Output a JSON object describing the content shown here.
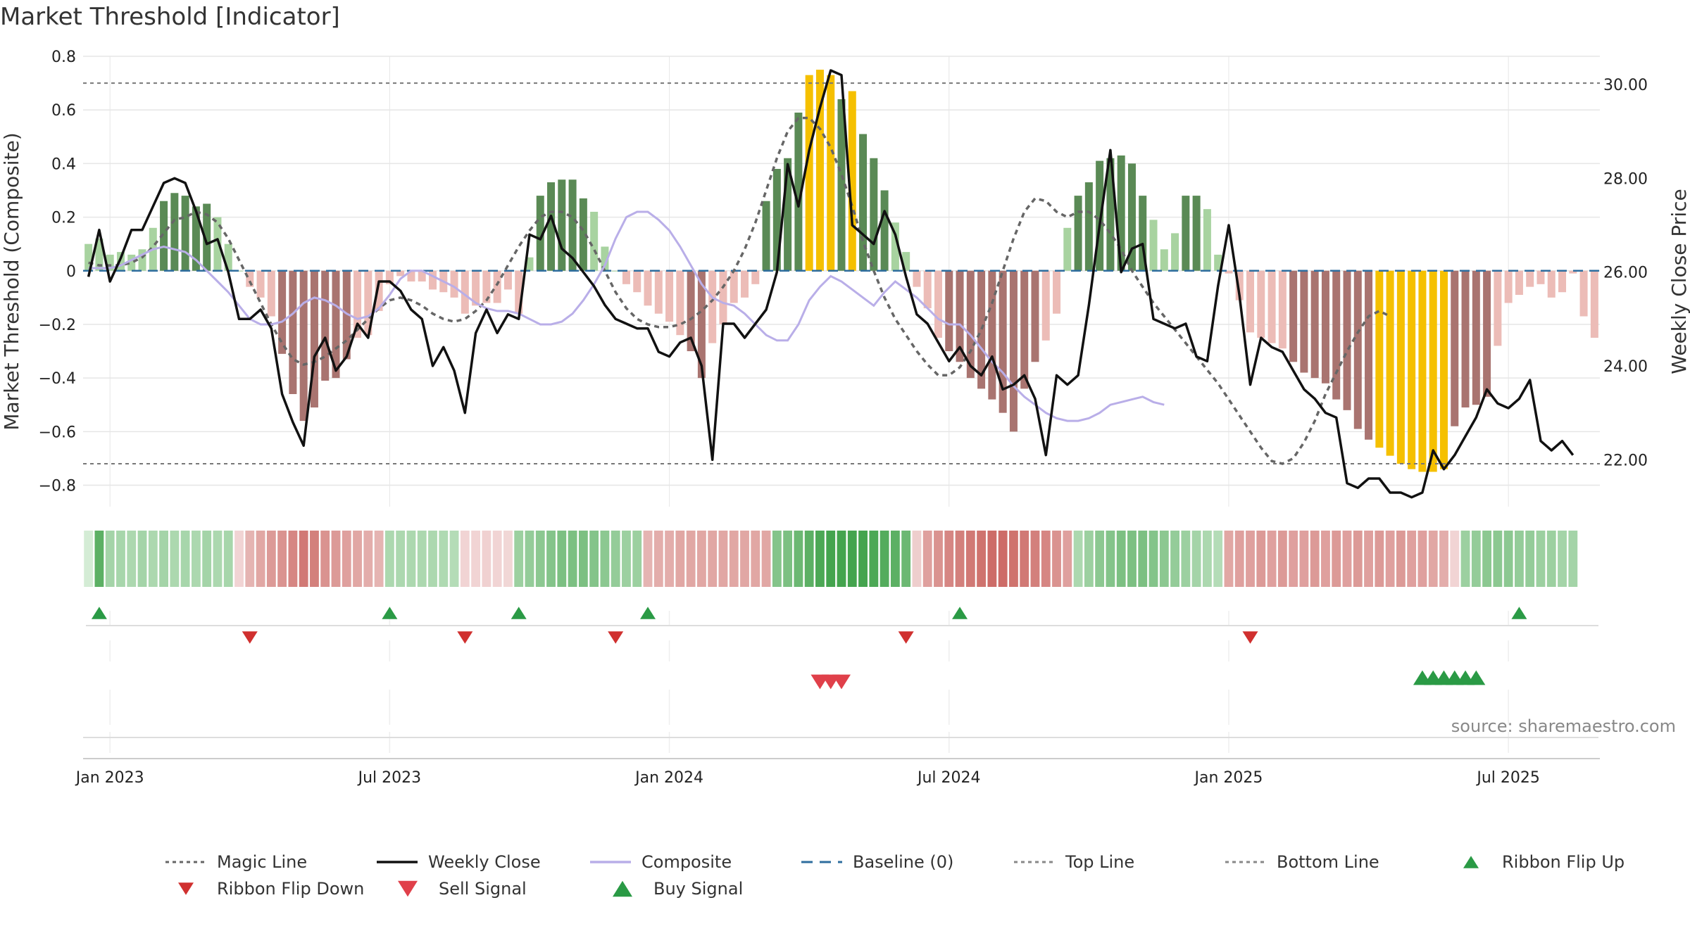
{
  "title": "Market Threshold [Indicator]",
  "source": "source: sharemaestro.com",
  "chart_data": {
    "type": "bar",
    "title": "Market Threshold [Indicator]",
    "ylabel": "Market Threshold (Composite)",
    "y2label": "Weekly Close Price",
    "ylim": [
      -0.88,
      0.8
    ],
    "y2lim": [
      21.0,
      30.6
    ],
    "yticks": [
      "0.8",
      "0.6",
      "0.4",
      "0.2",
      "0",
      "−0.2",
      "−0.4",
      "−0.6",
      "−0.8"
    ],
    "yticks_values": [
      0.8,
      0.6,
      0.4,
      0.2,
      0,
      -0.2,
      -0.4,
      -0.6,
      -0.8
    ],
    "y2ticks": [
      "30.00",
      "28.00",
      "26.00",
      "24.00",
      "22.00"
    ],
    "y2ticks_values": [
      30,
      28,
      26,
      24,
      22
    ],
    "xticks": [
      {
        "label": "Jan 2023",
        "week": 2
      },
      {
        "label": "Jul 2023",
        "week": 28
      },
      {
        "label": "Jan 2024",
        "week": 54
      },
      {
        "label": "Jul 2024",
        "week": 80
      },
      {
        "label": "Jan 2025",
        "week": 106
      },
      {
        "label": "Jul 2025",
        "week": 132
      }
    ],
    "top_line": 0.7,
    "bottom_line": -0.72,
    "baseline": 0,
    "composite_bars": [
      0.1,
      0.12,
      0.06,
      0.07,
      0.06,
      0.08,
      0.16,
      0.26,
      0.29,
      0.28,
      0.24,
      0.25,
      0.2,
      0.1,
      0,
      -0.06,
      -0.1,
      -0.17,
      -0.31,
      -0.46,
      -0.56,
      -0.51,
      -0.41,
      -0.4,
      -0.33,
      -0.25,
      -0.24,
      -0.15,
      -0.05,
      -0.02,
      -0.04,
      -0.04,
      -0.07,
      -0.08,
      -0.1,
      -0.16,
      -0.13,
      -0.12,
      -0.12,
      -0.07,
      -0.16,
      0.05,
      0.28,
      0.33,
      0.34,
      0.34,
      0.27,
      0.22,
      0.09,
      0,
      -0.05,
      -0.08,
      -0.13,
      -0.16,
      -0.19,
      -0.24,
      -0.3,
      -0.4,
      -0.27,
      -0.2,
      -0.12,
      -0.1,
      -0.05,
      0.26,
      0.38,
      0.42,
      0.59,
      0.73,
      0.75,
      0.73,
      0.64,
      0.67,
      0.51,
      0.42,
      0.3,
      0.18,
      0.07,
      -0.06,
      -0.14,
      -0.25,
      -0.3,
      -0.34,
      -0.4,
      -0.44,
      -0.48,
      -0.53,
      -0.6,
      -0.44,
      -0.34,
      -0.26,
      -0.16,
      0.16,
      0.28,
      0.33,
      0.41,
      0.42,
      0.43,
      0.4,
      0.28,
      0.19,
      0.08,
      0.14,
      0.28,
      0.28,
      0.23,
      0.06,
      -0.01,
      -0.11,
      -0.23,
      -0.25,
      -0.27,
      -0.29,
      -0.34,
      -0.38,
      -0.4,
      -0.42,
      -0.48,
      -0.52,
      -0.59,
      -0.63,
      -0.66,
      -0.69,
      -0.72,
      -0.74,
      -0.75,
      -0.75,
      -0.74,
      -0.58,
      -0.51,
      -0.5,
      -0.47,
      -0.28,
      -0.12,
      -0.09,
      -0.06,
      -0.05,
      -0.1,
      -0.08,
      -0.01,
      -0.17,
      -0.25
    ],
    "magic_line": [
      0.03,
      0.02,
      0.02,
      0.02,
      0.03,
      0.05,
      0.09,
      0.14,
      0.19,
      0.2,
      0.22,
      0.21,
      0.18,
      0.12,
      0.04,
      -0.04,
      -0.12,
      -0.2,
      -0.27,
      -0.33,
      -0.35,
      -0.34,
      -0.32,
      -0.29,
      -0.26,
      -0.22,
      -0.18,
      -0.14,
      -0.11,
      -0.1,
      -0.11,
      -0.13,
      -0.16,
      -0.18,
      -0.19,
      -0.18,
      -0.15,
      -0.11,
      -0.05,
      0.02,
      0.09,
      0.15,
      0.2,
      0.22,
      0.22,
      0.2,
      0.15,
      0.08,
      0,
      -0.08,
      -0.14,
      -0.18,
      -0.2,
      -0.21,
      -0.21,
      -0.2,
      -0.18,
      -0.15,
      -0.11,
      -0.06,
      0,
      0.08,
      0.18,
      0.3,
      0.42,
      0.52,
      0.57,
      0.57,
      0.53,
      0.46,
      0.36,
      0.24,
      0.11,
      0,
      -0.1,
      -0.18,
      -0.24,
      -0.3,
      -0.35,
      -0.39,
      -0.39,
      -0.36,
      -0.3,
      -0.22,
      -0.12,
      0,
      0.12,
      0.22,
      0.27,
      0.26,
      0.22,
      0.2,
      0.22,
      0.22,
      0.19,
      0.14,
      0.08,
      0,
      -0.06,
      -0.12,
      -0.17,
      -0.22,
      -0.27,
      -0.32,
      -0.37,
      -0.42,
      -0.48,
      -0.54,
      -0.6,
      -0.66,
      -0.71,
      -0.72,
      -0.7,
      -0.64,
      -0.56,
      -0.46,
      -0.38,
      -0.3,
      -0.23,
      -0.17,
      -0.15,
      -0.17
    ],
    "composite_line": [
      0.01,
      0.01,
      0.01,
      0.02,
      0.04,
      0.06,
      0.08,
      0.09,
      0.08,
      0.07,
      0.04,
      0,
      -0.04,
      -0.08,
      -0.13,
      -0.18,
      -0.2,
      -0.2,
      -0.19,
      -0.16,
      -0.12,
      -0.1,
      -0.11,
      -0.13,
      -0.16,
      -0.18,
      -0.17,
      -0.14,
      -0.09,
      -0.03,
      0,
      0,
      -0.02,
      -0.04,
      -0.06,
      -0.09,
      -0.12,
      -0.14,
      -0.15,
      -0.15,
      -0.16,
      -0.18,
      -0.2,
      -0.2,
      -0.19,
      -0.16,
      -0.11,
      -0.05,
      0.02,
      0.12,
      0.2,
      0.22,
      0.22,
      0.19,
      0.15,
      0.09,
      0.02,
      -0.05,
      -0.1,
      -0.12,
      -0.13,
      -0.16,
      -0.2,
      -0.24,
      -0.26,
      -0.26,
      -0.2,
      -0.11,
      -0.06,
      -0.02,
      -0.04,
      -0.07,
      -0.1,
      -0.13,
      -0.08,
      -0.04,
      -0.07,
      -0.1,
      -0.14,
      -0.18,
      -0.2,
      -0.2,
      -0.24,
      -0.29,
      -0.34,
      -0.38,
      -0.43,
      -0.47,
      -0.5,
      -0.53,
      -0.55,
      -0.56,
      -0.56,
      -0.55,
      -0.53,
      -0.5,
      -0.49,
      -0.48,
      -0.47,
      -0.49,
      -0.5
    ],
    "weekly_close": [
      25.9,
      26.9,
      25.8,
      26.3,
      26.9,
      26.9,
      27.4,
      27.9,
      28.0,
      27.9,
      27.3,
      26.6,
      26.7,
      26.0,
      25.0,
      25.0,
      25.2,
      24.8,
      23.4,
      22.8,
      22.3,
      24.2,
      24.6,
      23.9,
      24.2,
      24.9,
      24.6,
      25.8,
      25.8,
      25.6,
      25.2,
      25.0,
      24.0,
      24.4,
      23.9,
      23.0,
      24.7,
      25.2,
      24.7,
      25.1,
      25.0,
      26.8,
      26.7,
      27.2,
      26.5,
      26.3,
      26.0,
      25.7,
      25.3,
      25.0,
      24.9,
      24.8,
      24.8,
      24.3,
      24.2,
      24.5,
      24.6,
      24.0,
      22.0,
      24.9,
      24.9,
      24.6,
      24.9,
      25.2,
      26.0,
      28.3,
      27.4,
      28.6,
      29.5,
      30.3,
      30.2,
      27.0,
      26.8,
      26.6,
      27.3,
      26.8,
      25.9,
      25.1,
      24.9,
      24.5,
      24.1,
      24.4,
      24.0,
      23.8,
      24.2,
      23.5,
      23.6,
      23.8,
      23.3,
      22.1,
      23.8,
      23.6,
      23.8,
      25.3,
      27.0,
      28.6,
      26.0,
      26.5,
      26.6,
      25.0,
      24.9,
      24.8,
      24.9,
      24.2,
      24.1,
      25.7,
      27.0,
      25.5,
      23.6,
      24.6,
      24.4,
      24.3,
      23.9,
      23.5,
      23.3,
      23.0,
      22.9,
      21.5,
      21.4,
      21.6,
      21.6,
      21.3,
      21.3,
      21.2,
      21.3,
      22.2,
      21.8,
      22.1,
      22.5,
      22.9,
      23.5,
      23.2,
      23.1,
      23.3,
      23.7,
      22.4,
      22.2,
      22.4,
      22.1
    ],
    "ribbon": [
      0.05,
      0.8,
      0.35,
      0.33,
      0.3,
      0.35,
      0.3,
      0.35,
      0.3,
      0.33,
      0.3,
      0.35,
      0.3,
      0.33,
      -0.1,
      -0.35,
      -0.45,
      -0.55,
      -0.6,
      -0.7,
      -0.8,
      -0.75,
      -0.6,
      -0.55,
      -0.5,
      -0.45,
      -0.4,
      -0.35,
      0.3,
      0.3,
      0.3,
      0.3,
      0.3,
      0.28,
      0.25,
      -0.1,
      -0.1,
      -0.12,
      -0.1,
      -0.08,
      0.4,
      0.45,
      0.5,
      0.55,
      0.6,
      0.6,
      0.6,
      0.55,
      0.5,
      0.45,
      0.4,
      0.4,
      -0.35,
      -0.4,
      -0.4,
      -0.45,
      -0.45,
      -0.45,
      -0.45,
      -0.45,
      -0.45,
      -0.45,
      -0.45,
      -0.45,
      0.55,
      0.6,
      0.7,
      0.8,
      0.9,
      0.95,
      0.95,
      0.95,
      0.95,
      0.9,
      0.85,
      0.8,
      0.7,
      -0.15,
      -0.5,
      -0.6,
      -0.7,
      -0.75,
      -0.8,
      -0.85,
      -0.9,
      -0.9,
      -0.85,
      -0.8,
      -0.75,
      -0.7,
      -0.6,
      -0.5,
      0.3,
      0.4,
      0.5,
      0.55,
      0.6,
      0.6,
      0.6,
      0.55,
      0.5,
      0.45,
      0.4,
      0.35,
      0.3,
      0.25,
      -0.45,
      -0.5,
      -0.5,
      -0.55,
      -0.5,
      -0.55,
      -0.5,
      -0.5,
      -0.55,
      -0.5,
      -0.55,
      -0.5,
      -0.55,
      -0.5,
      -0.55,
      -0.5,
      -0.55,
      -0.5,
      -0.5,
      -0.45,
      -0.4,
      -0.1,
      0.4,
      0.45,
      0.5,
      0.5,
      0.5,
      0.45,
      0.45,
      0.4,
      0.4,
      0.35,
      0.35
    ],
    "ribbon_flip_up": [
      1,
      28,
      40,
      52,
      81,
      133
    ],
    "ribbon_flip_down": [
      15,
      35,
      49,
      76,
      108
    ],
    "sell_signal": [
      68,
      69,
      70
    ],
    "buy_signal": [
      124,
      125,
      126,
      127,
      128,
      129
    ],
    "legend": [
      {
        "label": "Magic Line",
        "style": "dotted",
        "color": "#666666"
      },
      {
        "label": "Weekly Close",
        "style": "solid",
        "color": "#111111"
      },
      {
        "label": "Composite",
        "style": "solid",
        "color": "#b9aee8"
      },
      {
        "label": "Baseline (0)",
        "style": "dashed",
        "color": "#2e6d9e"
      },
      {
        "label": "Top Line",
        "style": "dotted",
        "color": "#888888"
      },
      {
        "label": "Bottom Line",
        "style": "dotted",
        "color": "#888888"
      },
      {
        "label": "Ribbon Flip Up",
        "style": "tri-up",
        "color": "#2a9a45"
      },
      {
        "label": "Ribbon Flip Down",
        "style": "tri-down",
        "color": "#d0302f"
      },
      {
        "label": "Sell Signal",
        "style": "tri-down-big",
        "color": "#e0404a"
      },
      {
        "label": "Buy Signal",
        "style": "tri-up-big",
        "color": "#2a9a45"
      }
    ],
    "colors": {
      "bull_strong": "#5a8a55",
      "bull_weak": "#a8d3a0",
      "bear_strong": "#a97470",
      "bear_weak": "#ecbcb7",
      "extreme": "#f5c000",
      "grid": "#e6e6e6",
      "flip_up": "#2a9a45",
      "flip_down": "#d0302f",
      "sell": "#e0404a",
      "buy": "#2a9a45"
    }
  }
}
